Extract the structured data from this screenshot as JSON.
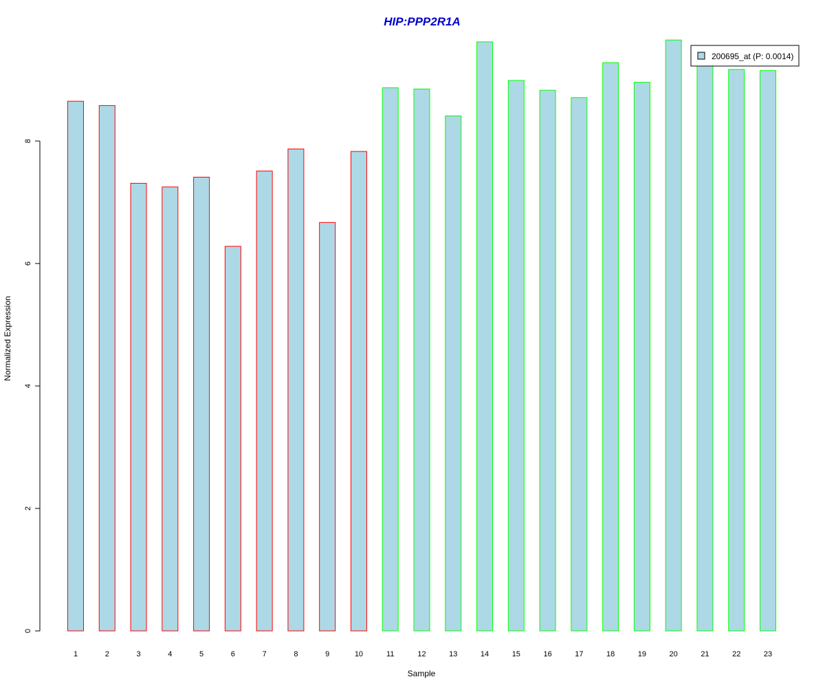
{
  "chart_data": {
    "type": "bar",
    "title": "HIP:PPP2R1A",
    "xlabel": "Sample",
    "ylabel": "Normalized Expression",
    "categories": [
      "1",
      "2",
      "3",
      "4",
      "5",
      "6",
      "7",
      "8",
      "9",
      "10",
      "11",
      "12",
      "13",
      "14",
      "15",
      "16",
      "17",
      "18",
      "19",
      "20",
      "21",
      "22",
      "23"
    ],
    "series": [
      {
        "name": "200695_at (P: 0.0014)",
        "values": [
          8.65,
          8.58,
          7.31,
          7.25,
          7.41,
          6.28,
          7.51,
          7.87,
          6.67,
          7.83,
          8.87,
          8.85,
          8.41,
          9.62,
          8.99,
          8.83,
          8.71,
          9.28,
          8.96,
          9.65,
          9.3,
          9.17,
          9.15
        ],
        "fill": "#ADD8E6"
      }
    ],
    "group_border_colors": [
      "#FF0000",
      "#FF0000",
      "#FF0000",
      "#FF0000",
      "#FF0000",
      "#FF0000",
      "#FF0000",
      "#FF0000",
      "#FF0000",
      "#FF0000",
      "#00FF00",
      "#00FF00",
      "#00FF00",
      "#00FF00",
      "#00FF00",
      "#00FF00",
      "#00FF00",
      "#00FF00",
      "#00FF00",
      "#00FF00",
      "#00FF00",
      "#00FF00",
      "#00FF00"
    ],
    "yticks": [
      "0",
      "2",
      "4",
      "6",
      "8"
    ],
    "ylim": [
      0,
      9.8
    ],
    "grid": false,
    "legend_position": "top-right",
    "title_color": "#0000CD"
  }
}
